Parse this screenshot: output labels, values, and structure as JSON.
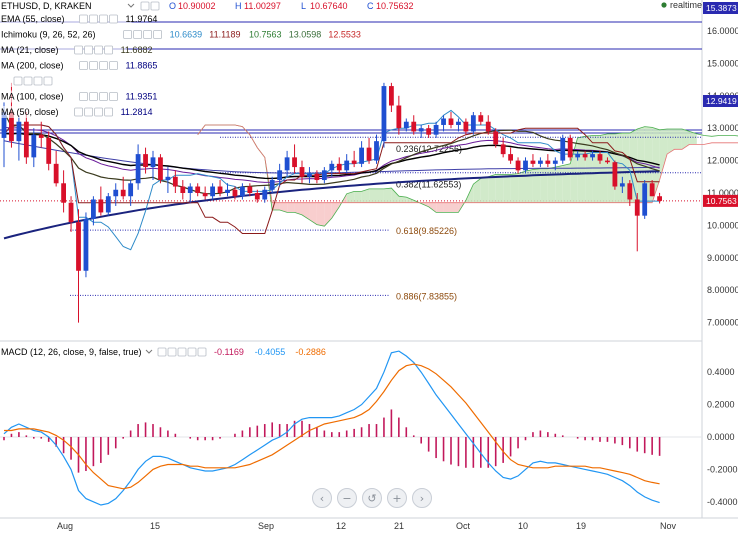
{
  "header": {
    "symbol": "ETHUSD, D, KRAKEN",
    "ohlc": [
      {
        "key": "O",
        "value": "10.90002"
      },
      {
        "key": "H",
        "value": "11.00297"
      },
      {
        "key": "L",
        "value": "10.67640"
      },
      {
        "key": "C",
        "value": "10.75632"
      }
    ],
    "status": "realtime"
  },
  "indicators": [
    {
      "label": "EMA (55, close)",
      "values": [
        "11.9764"
      ],
      "value_colors": [
        "#000000"
      ]
    },
    {
      "label": "Ichimoku (9, 26, 52, 26)",
      "values": [
        "10.6639",
        "11.1189",
        "10.7563",
        "13.0598",
        "12.5533"
      ],
      "value_colors": [
        "#2e8bc9",
        "#8b1a1a",
        "#2e7d32",
        "#3a6e3a",
        "#c62828"
      ]
    },
    {
      "label": "MA (21, close)",
      "values": [
        "11.6882"
      ],
      "value_colors": [
        "#3b3b1f"
      ]
    },
    {
      "label": "MA (200, close)",
      "values": [
        "11.8865"
      ],
      "value_colors": [
        "#000080"
      ]
    },
    {
      "label": "",
      "values": [],
      "value_colors": []
    },
    {
      "label": "MA (100, close)",
      "values": [
        "11.9351"
      ],
      "value_colors": [
        "#000080"
      ]
    },
    {
      "label": "MA (50, close)",
      "values": [
        "11.2814"
      ],
      "value_colors": [
        "#000080"
      ]
    }
  ],
  "macd_header": {
    "label": "MACD (12, 26, close, 9, false, true)",
    "values": [
      "-0.1169",
      "-0.4055",
      "-0.2886"
    ],
    "value_colors": [
      "#c2185b",
      "#2196f3",
      "#ef6c00"
    ]
  },
  "colors": {
    "bull": "#1f4fd1",
    "bear": "#d8102a",
    "ema55": "#000000",
    "ma21": "#3b3b1f",
    "ma200": "#1a237e",
    "ma100": "#3f3fa8",
    "ma50": "#6a1b9a",
    "ichimoku_conversion": "#2e8bc9",
    "ichimoku_base": "#8b1a1a",
    "cloud_bear": "#f7c6c6",
    "cloud_bull": "#c9e6c1",
    "macd_line": "#2196f3",
    "signal_line": "#ef6c00",
    "histogram": "#c2185b",
    "fib_line": "#2a2ab0",
    "status_dot": "#2e7d32"
  },
  "axis": {
    "price_ticks": [
      "16.00000",
      "15.00000",
      "14.00000",
      "13.00000",
      "12.00000",
      "11.00000",
      "10.00000",
      "9.00000",
      "8.00000",
      "7.00000"
    ],
    "price_tags": [
      "15.3873",
      "12.9419",
      "10.7563"
    ],
    "macd_ticks": [
      "0.4000",
      "0.2000",
      "0.0000",
      "-0.2000",
      "-0.4000"
    ],
    "date_ticks": [
      "Aug",
      "15",
      "Sep",
      "12",
      "21",
      "Oct",
      "10",
      "19",
      "Nov"
    ]
  },
  "fibs": [
    "0.236(12.72256)",
    "0.382(11.62553)",
    "0.618(9.85226)",
    "0.886(7.83855)"
  ],
  "chart_data": {
    "type": "candlestick",
    "x_axis_labels": [
      "Aug",
      "15",
      "Sep",
      "12",
      "21",
      "Oct",
      "10",
      "19",
      "Nov"
    ],
    "y_range": [
      7.0,
      16.0
    ],
    "last_price": 10.75632,
    "fib_levels": [
      {
        "ratio": 0.236,
        "price": 12.72256
      },
      {
        "ratio": 0.382,
        "price": 11.62553
      },
      {
        "ratio": 0.618,
        "price": 9.85226
      },
      {
        "ratio": 0.886,
        "price": 7.83855
      }
    ],
    "candles": [
      {
        "o": 12.7,
        "h": 13.8,
        "l": 11.8,
        "c": 13.5
      },
      {
        "o": 13.5,
        "h": 14.4,
        "l": 12.4,
        "c": 12.6
      },
      {
        "o": 12.6,
        "h": 13.4,
        "l": 12.0,
        "c": 13.2
      },
      {
        "o": 13.2,
        "h": 13.5,
        "l": 11.9,
        "c": 12.1
      },
      {
        "o": 12.1,
        "h": 13.0,
        "l": 11.8,
        "c": 12.8
      },
      {
        "o": 12.8,
        "h": 13.2,
        "l": 12.4,
        "c": 12.7
      },
      {
        "o": 12.7,
        "h": 12.9,
        "l": 11.7,
        "c": 11.9
      },
      {
        "o": 11.9,
        "h": 12.3,
        "l": 11.2,
        "c": 11.3
      },
      {
        "o": 11.3,
        "h": 11.7,
        "l": 10.4,
        "c": 10.7
      },
      {
        "o": 10.7,
        "h": 10.9,
        "l": 9.8,
        "c": 10.1
      },
      {
        "o": 10.1,
        "h": 10.5,
        "l": 7.0,
        "c": 8.6
      },
      {
        "o": 8.6,
        "h": 10.4,
        "l": 8.4,
        "c": 10.2
      },
      {
        "o": 10.2,
        "h": 10.9,
        "l": 10.0,
        "c": 10.8
      },
      {
        "o": 10.8,
        "h": 11.2,
        "l": 10.3,
        "c": 10.4
      },
      {
        "o": 10.4,
        "h": 11.0,
        "l": 10.3,
        "c": 10.9
      },
      {
        "o": 10.9,
        "h": 11.3,
        "l": 10.6,
        "c": 11.1
      },
      {
        "o": 11.1,
        "h": 11.5,
        "l": 10.8,
        "c": 10.9
      },
      {
        "o": 10.9,
        "h": 11.4,
        "l": 10.6,
        "c": 11.3
      },
      {
        "o": 11.3,
        "h": 12.5,
        "l": 11.1,
        "c": 12.2
      },
      {
        "o": 12.2,
        "h": 12.4,
        "l": 11.6,
        "c": 11.8
      },
      {
        "o": 11.8,
        "h": 12.3,
        "l": 11.4,
        "c": 12.1
      },
      {
        "o": 12.1,
        "h": 12.2,
        "l": 11.3,
        "c": 11.4
      },
      {
        "o": 11.4,
        "h": 11.8,
        "l": 11.0,
        "c": 11.5
      },
      {
        "o": 11.5,
        "h": 11.7,
        "l": 11.0,
        "c": 11.2
      },
      {
        "o": 11.2,
        "h": 11.4,
        "l": 10.8,
        "c": 11.0
      },
      {
        "o": 11.0,
        "h": 11.3,
        "l": 10.7,
        "c": 11.2
      },
      {
        "o": 11.2,
        "h": 11.3,
        "l": 10.9,
        "c": 11.0
      },
      {
        "o": 11.0,
        "h": 11.2,
        "l": 10.8,
        "c": 10.9
      },
      {
        "o": 10.9,
        "h": 11.3,
        "l": 10.8,
        "c": 11.2
      },
      {
        "o": 11.2,
        "h": 11.4,
        "l": 10.9,
        "c": 11.0
      },
      {
        "o": 11.0,
        "h": 11.3,
        "l": 10.9,
        "c": 11.1
      },
      {
        "o": 11.1,
        "h": 11.2,
        "l": 10.8,
        "c": 10.9
      },
      {
        "o": 10.9,
        "h": 11.3,
        "l": 10.8,
        "c": 11.2
      },
      {
        "o": 11.2,
        "h": 11.3,
        "l": 10.9,
        "c": 11.0
      },
      {
        "o": 11.0,
        "h": 11.1,
        "l": 10.7,
        "c": 10.8
      },
      {
        "o": 10.8,
        "h": 11.2,
        "l": 10.7,
        "c": 11.1
      },
      {
        "o": 11.1,
        "h": 11.5,
        "l": 11.0,
        "c": 11.4
      },
      {
        "o": 11.4,
        "h": 11.9,
        "l": 11.2,
        "c": 11.7
      },
      {
        "o": 11.7,
        "h": 12.3,
        "l": 11.5,
        "c": 12.1
      },
      {
        "o": 12.1,
        "h": 12.5,
        "l": 11.6,
        "c": 11.8
      },
      {
        "o": 11.8,
        "h": 12.0,
        "l": 11.3,
        "c": 11.5
      },
      {
        "o": 11.5,
        "h": 11.8,
        "l": 11.3,
        "c": 11.6
      },
      {
        "o": 11.6,
        "h": 11.7,
        "l": 11.3,
        "c": 11.4
      },
      {
        "o": 11.4,
        "h": 11.8,
        "l": 11.3,
        "c": 11.7
      },
      {
        "o": 11.7,
        "h": 12.0,
        "l": 11.5,
        "c": 11.9
      },
      {
        "o": 11.9,
        "h": 12.1,
        "l": 11.6,
        "c": 11.7
      },
      {
        "o": 11.7,
        "h": 12.2,
        "l": 11.6,
        "c": 12.0
      },
      {
        "o": 12.0,
        "h": 12.3,
        "l": 11.8,
        "c": 11.9
      },
      {
        "o": 11.9,
        "h": 12.6,
        "l": 11.8,
        "c": 12.4
      },
      {
        "o": 12.4,
        "h": 12.7,
        "l": 11.9,
        "c": 12.0
      },
      {
        "o": 12.0,
        "h": 12.8,
        "l": 11.9,
        "c": 12.6
      },
      {
        "o": 12.6,
        "h": 14.4,
        "l": 12.4,
        "c": 14.3
      },
      {
        "o": 14.3,
        "h": 14.4,
        "l": 13.5,
        "c": 13.7
      },
      {
        "o": 13.7,
        "h": 14.0,
        "l": 12.8,
        "c": 13.0
      },
      {
        "o": 13.0,
        "h": 13.3,
        "l": 12.9,
        "c": 13.2
      },
      {
        "o": 13.2,
        "h": 13.4,
        "l": 12.8,
        "c": 12.9
      },
      {
        "o": 12.9,
        "h": 13.1,
        "l": 12.7,
        "c": 13.0
      },
      {
        "o": 13.0,
        "h": 13.1,
        "l": 12.7,
        "c": 12.8
      },
      {
        "o": 12.8,
        "h": 13.2,
        "l": 12.7,
        "c": 13.1
      },
      {
        "o": 13.1,
        "h": 13.4,
        "l": 12.9,
        "c": 13.3
      },
      {
        "o": 13.3,
        "h": 13.5,
        "l": 13.0,
        "c": 13.1
      },
      {
        "o": 13.1,
        "h": 13.3,
        "l": 12.9,
        "c": 13.2
      },
      {
        "o": 13.2,
        "h": 13.3,
        "l": 12.8,
        "c": 12.9
      },
      {
        "o": 12.9,
        "h": 13.5,
        "l": 12.8,
        "c": 13.4
      },
      {
        "o": 13.4,
        "h": 13.5,
        "l": 13.1,
        "c": 13.2
      },
      {
        "o": 13.2,
        "h": 13.4,
        "l": 12.8,
        "c": 12.9
      },
      {
        "o": 12.9,
        "h": 13.0,
        "l": 12.4,
        "c": 12.5
      },
      {
        "o": 12.5,
        "h": 12.7,
        "l": 12.1,
        "c": 12.2
      },
      {
        "o": 12.2,
        "h": 12.4,
        "l": 11.9,
        "c": 12.0
      },
      {
        "o": 12.0,
        "h": 12.1,
        "l": 11.6,
        "c": 11.7
      },
      {
        "o": 11.7,
        "h": 12.1,
        "l": 11.6,
        "c": 12.0
      },
      {
        "o": 12.0,
        "h": 12.2,
        "l": 11.8,
        "c": 11.9
      },
      {
        "o": 11.9,
        "h": 12.1,
        "l": 11.8,
        "c": 12.0
      },
      {
        "o": 12.0,
        "h": 12.2,
        "l": 11.8,
        "c": 11.9
      },
      {
        "o": 11.9,
        "h": 12.1,
        "l": 11.7,
        "c": 12.0
      },
      {
        "o": 12.0,
        "h": 12.8,
        "l": 11.9,
        "c": 12.7
      },
      {
        "o": 12.7,
        "h": 12.8,
        "l": 12.0,
        "c": 12.1
      },
      {
        "o": 12.1,
        "h": 12.3,
        "l": 12.0,
        "c": 12.2
      },
      {
        "o": 12.2,
        "h": 12.3,
        "l": 12.0,
        "c": 12.1
      },
      {
        "o": 12.1,
        "h": 12.3,
        "l": 12.0,
        "c": 12.2
      },
      {
        "o": 12.2,
        "h": 12.3,
        "l": 11.9,
        "c": 12.0
      },
      {
        "o": 12.0,
        "h": 12.1,
        "l": 11.9,
        "c": 11.95
      },
      {
        "o": 11.95,
        "h": 12.0,
        "l": 11.1,
        "c": 11.2
      },
      {
        "o": 11.2,
        "h": 11.5,
        "l": 11.0,
        "c": 11.3
      },
      {
        "o": 11.3,
        "h": 11.4,
        "l": 10.6,
        "c": 10.8
      },
      {
        "o": 10.8,
        "h": 11.0,
        "l": 9.2,
        "c": 10.3
      },
      {
        "o": 10.3,
        "h": 11.4,
        "l": 10.2,
        "c": 11.3
      },
      {
        "o": 11.3,
        "h": 11.4,
        "l": 10.9,
        "c": 10.9
      },
      {
        "o": 10.90002,
        "h": 11.00297,
        "l": 10.6764,
        "c": 10.75632
      }
    ],
    "macd": [
      0.02,
      0.06,
      0.08,
      0.06,
      0.04,
      0.03,
      0.0,
      -0.05,
      -0.12,
      -0.2,
      -0.33,
      -0.38,
      -0.4,
      -0.42,
      -0.41,
      -0.38,
      -0.33,
      -0.27,
      -0.2,
      -0.15,
      -0.12,
      -0.12,
      -0.13,
      -0.15,
      -0.17,
      -0.19,
      -0.2,
      -0.21,
      -0.21,
      -0.2,
      -0.19,
      -0.17,
      -0.14,
      -0.11,
      -0.08,
      -0.05,
      -0.02,
      0.0,
      0.03,
      0.08,
      0.11,
      0.12,
      0.12,
      0.12,
      0.12,
      0.13,
      0.15,
      0.17,
      0.2,
      0.25,
      0.3,
      0.4,
      0.52,
      0.53,
      0.5,
      0.46,
      0.4,
      0.33,
      0.26,
      0.2,
      0.14,
      0.08,
      0.02,
      -0.04,
      -0.1,
      -0.16,
      -0.21,
      -0.25,
      -0.26,
      -0.24,
      -0.2,
      -0.16,
      -0.15,
      -0.16,
      -0.16,
      -0.17,
      -0.18,
      -0.19,
      -0.2,
      -0.21,
      -0.22,
      -0.23,
      -0.25,
      -0.27,
      -0.3,
      -0.34,
      -0.37,
      -0.39,
      -0.405
    ],
    "signal": [
      0.04,
      0.04,
      0.05,
      0.05,
      0.05,
      0.04,
      0.03,
      0.01,
      -0.02,
      -0.06,
      -0.11,
      -0.17,
      -0.22,
      -0.26,
      -0.3,
      -0.31,
      -0.32,
      -0.31,
      -0.28,
      -0.24,
      -0.2,
      -0.18,
      -0.17,
      -0.17,
      -0.17,
      -0.18,
      -0.18,
      -0.19,
      -0.19,
      -0.19,
      -0.19,
      -0.19,
      -0.18,
      -0.17,
      -0.15,
      -0.13,
      -0.11,
      -0.08,
      -0.05,
      -0.02,
      0.01,
      0.04,
      0.06,
      0.08,
      0.09,
      0.1,
      0.11,
      0.12,
      0.14,
      0.17,
      0.22,
      0.28,
      0.35,
      0.41,
      0.44,
      0.45,
      0.44,
      0.42,
      0.39,
      0.35,
      0.31,
      0.26,
      0.21,
      0.15,
      0.09,
      0.03,
      -0.03,
      -0.09,
      -0.14,
      -0.17,
      -0.18,
      -0.19,
      -0.19,
      -0.19,
      -0.18,
      -0.18,
      -0.18,
      -0.18,
      -0.18,
      -0.19,
      -0.19,
      -0.2,
      -0.21,
      -0.22,
      -0.23,
      -0.25,
      -0.27,
      -0.28,
      -0.2886
    ]
  }
}
